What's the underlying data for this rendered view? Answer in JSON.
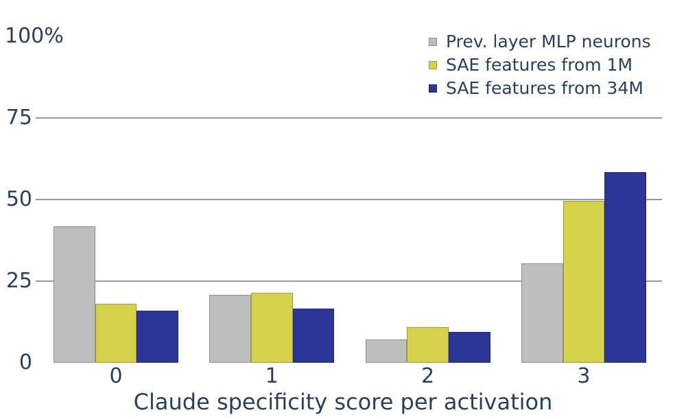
{
  "chart_data": {
    "type": "bar",
    "title": "",
    "xlabel": "Claude specificity score per activation",
    "ylabel": "",
    "unit": "%",
    "categories": [
      "0",
      "1",
      "2",
      "3"
    ],
    "series": [
      {
        "name": "Prev. layer MLP neurons",
        "color": "#bdbdbd",
        "edge": "#8f8f8f",
        "values": [
          41.8,
          20.8,
          7.1,
          30.5
        ]
      },
      {
        "name": "SAE features from 1M",
        "color": "#d5d14b",
        "edge": "#9d9a39",
        "values": [
          18.1,
          21.5,
          11.0,
          49.6
        ]
      },
      {
        "name": "SAE features from 34M",
        "color": "#2b3697",
        "edge": "#232d73",
        "values": [
          15.9,
          16.6,
          9.5,
          58.3
        ]
      }
    ],
    "y_ticks": [
      {
        "value": 0,
        "label": "0"
      },
      {
        "value": 25,
        "label": "25"
      },
      {
        "value": 50,
        "label": "50"
      },
      {
        "value": 75,
        "label": "75"
      },
      {
        "value": 100,
        "label": "100%"
      }
    ],
    "gridlines_at": [
      25,
      50,
      75
    ],
    "ylim": [
      0,
      100
    ],
    "grid_on": true,
    "legend_position": "top-right",
    "colors": {
      "text": "#2a3f5f",
      "grid": "#999999",
      "background": "#ffffff"
    }
  }
}
